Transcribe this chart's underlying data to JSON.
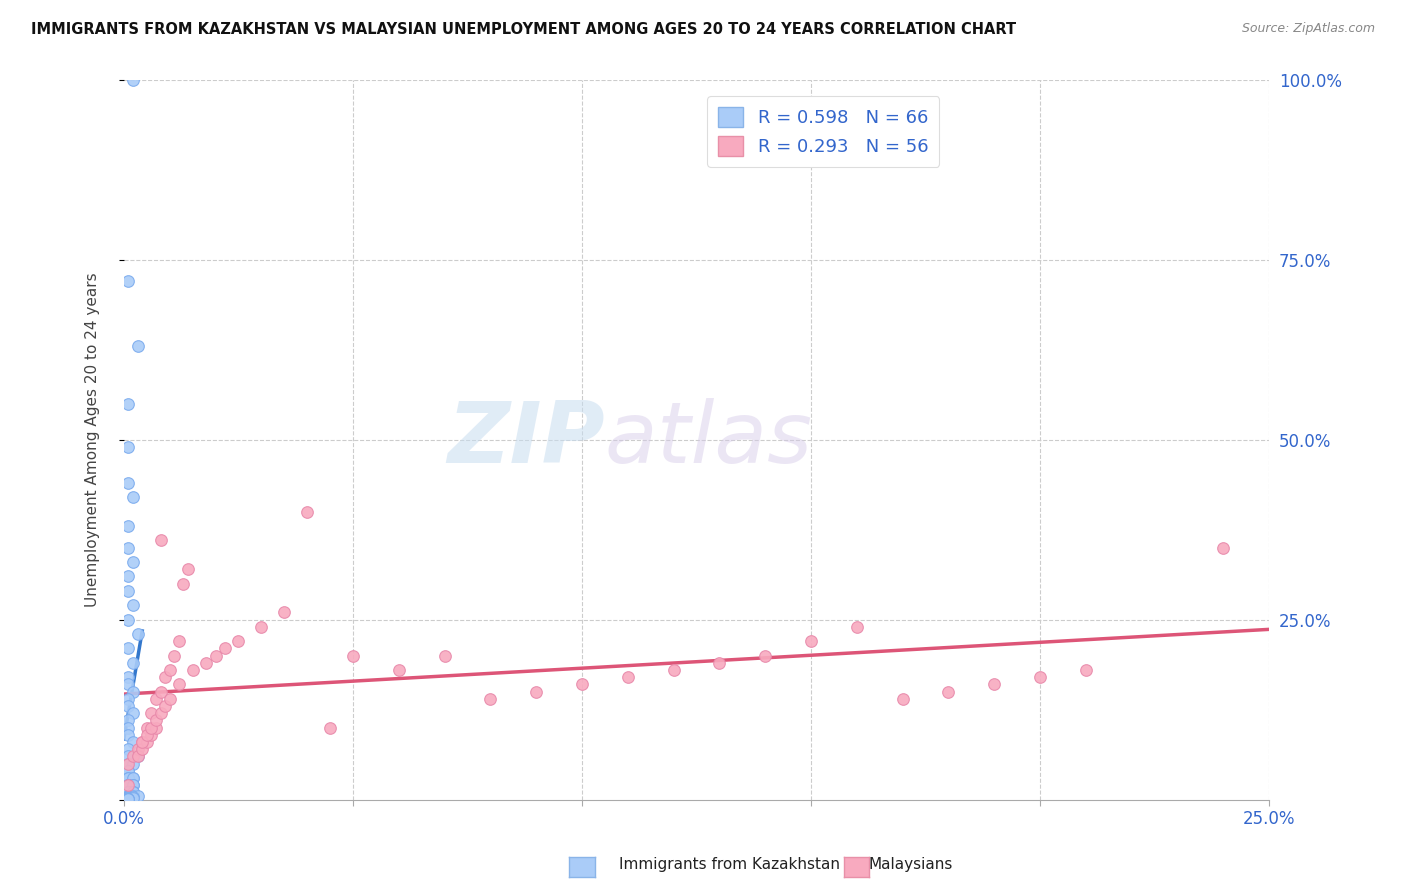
{
  "title": "IMMIGRANTS FROM KAZAKHSTAN VS MALAYSIAN UNEMPLOYMENT AMONG AGES 20 TO 24 YEARS CORRELATION CHART",
  "source": "Source: ZipAtlas.com",
  "ylabel": "Unemployment Among Ages 20 to 24 years",
  "xlim": [
    0.0,
    0.25
  ],
  "ylim": [
    0.0,
    1.0
  ],
  "blue_R": 0.598,
  "blue_N": 66,
  "pink_R": 0.293,
  "pink_N": 56,
  "blue_color": "#aaccf8",
  "pink_color": "#f8aabf",
  "blue_line_color": "#3377cc",
  "pink_line_color": "#dd5577",
  "blue_dash_color": "#bbccdd",
  "watermark_zip": "ZIP",
  "watermark_atlas": "atlas",
  "bx": [
    0.002,
    0.001,
    0.003,
    0.001,
    0.001,
    0.001,
    0.002,
    0.001,
    0.001,
    0.002,
    0.001,
    0.001,
    0.002,
    0.001,
    0.003,
    0.001,
    0.002,
    0.001,
    0.001,
    0.002,
    0.001,
    0.001,
    0.002,
    0.001,
    0.001,
    0.001,
    0.002,
    0.001,
    0.001,
    0.003,
    0.001,
    0.002,
    0.001,
    0.001,
    0.002,
    0.001,
    0.001,
    0.002,
    0.001,
    0.001,
    0.002,
    0.001,
    0.001,
    0.002,
    0.001,
    0.001,
    0.002,
    0.001,
    0.001,
    0.002,
    0.001,
    0.001,
    0.002,
    0.001,
    0.001,
    0.002,
    0.003,
    0.001,
    0.001,
    0.002,
    0.001,
    0.001,
    0.002,
    0.001,
    0.001,
    0.001
  ],
  "by": [
    1.0,
    0.72,
    0.63,
    0.55,
    0.49,
    0.44,
    0.42,
    0.38,
    0.35,
    0.33,
    0.31,
    0.29,
    0.27,
    0.25,
    0.23,
    0.21,
    0.19,
    0.17,
    0.16,
    0.15,
    0.14,
    0.13,
    0.12,
    0.11,
    0.1,
    0.09,
    0.08,
    0.07,
    0.06,
    0.06,
    0.05,
    0.05,
    0.04,
    0.04,
    0.03,
    0.03,
    0.03,
    0.03,
    0.02,
    0.02,
    0.02,
    0.02,
    0.02,
    0.02,
    0.01,
    0.01,
    0.01,
    0.01,
    0.01,
    0.01,
    0.01,
    0.01,
    0.01,
    0.005,
    0.005,
    0.005,
    0.005,
    0.003,
    0.003,
    0.003,
    0.002,
    0.002,
    0.002,
    0.001,
    0.001,
    0.001
  ],
  "px": [
    0.001,
    0.002,
    0.003,
    0.004,
    0.005,
    0.006,
    0.007,
    0.008,
    0.003,
    0.004,
    0.005,
    0.006,
    0.007,
    0.008,
    0.009,
    0.01,
    0.011,
    0.012,
    0.013,
    0.014,
    0.004,
    0.005,
    0.006,
    0.007,
    0.008,
    0.009,
    0.01,
    0.012,
    0.015,
    0.018,
    0.02,
    0.022,
    0.025,
    0.03,
    0.035,
    0.04,
    0.045,
    0.05,
    0.06,
    0.07,
    0.08,
    0.09,
    0.1,
    0.11,
    0.12,
    0.13,
    0.14,
    0.15,
    0.16,
    0.17,
    0.18,
    0.19,
    0.2,
    0.21,
    0.24,
    0.001
  ],
  "py": [
    0.05,
    0.06,
    0.07,
    0.08,
    0.1,
    0.12,
    0.14,
    0.36,
    0.06,
    0.07,
    0.08,
    0.09,
    0.1,
    0.15,
    0.17,
    0.18,
    0.2,
    0.22,
    0.3,
    0.32,
    0.08,
    0.09,
    0.1,
    0.11,
    0.12,
    0.13,
    0.14,
    0.16,
    0.18,
    0.19,
    0.2,
    0.21,
    0.22,
    0.24,
    0.26,
    0.4,
    0.1,
    0.2,
    0.18,
    0.2,
    0.14,
    0.15,
    0.16,
    0.17,
    0.18,
    0.19,
    0.2,
    0.22,
    0.24,
    0.14,
    0.15,
    0.16,
    0.17,
    0.18,
    0.35,
    0.02
  ]
}
